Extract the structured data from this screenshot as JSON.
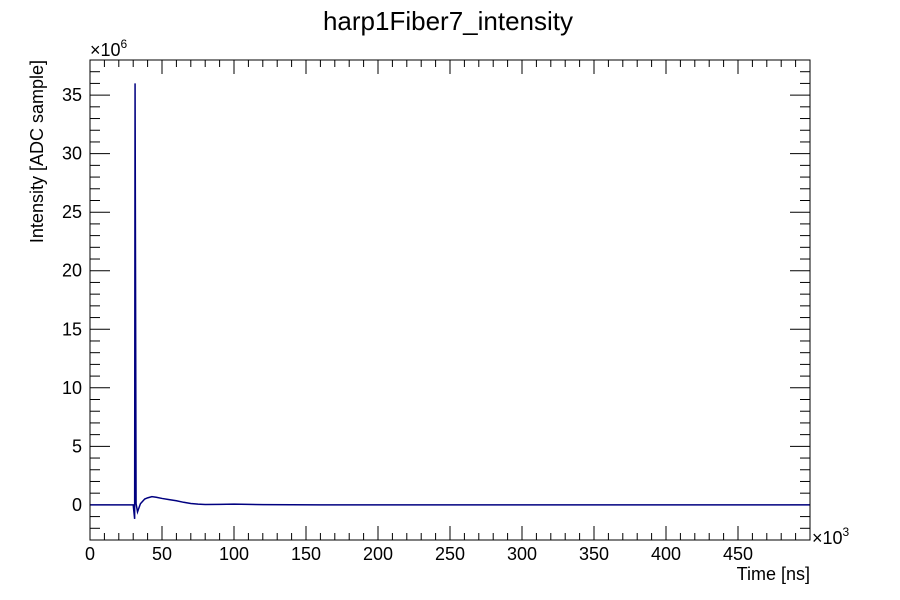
{
  "chart_data": {
    "type": "line",
    "title": "harp1Fiber7_intensity",
    "xlabel": "Time [ns]",
    "ylabel": "Intensity [ADC sample]",
    "x_multiplier_base": "×10",
    "x_multiplier_exp": "3",
    "y_multiplier_base": "×10",
    "y_multiplier_exp": "6",
    "xlim": [
      0,
      500
    ],
    "ylim": [
      -3,
      38
    ],
    "x_ticks": [
      0,
      50,
      100,
      150,
      200,
      250,
      300,
      350,
      400,
      450
    ],
    "x_tick_labels": [
      "0",
      "50",
      "100",
      "150",
      "200",
      "250",
      "300",
      "350",
      "400",
      "450"
    ],
    "y_ticks": [
      0,
      5,
      10,
      15,
      20,
      25,
      30,
      35
    ],
    "y_tick_labels": [
      "0",
      "5",
      "10",
      "15",
      "20",
      "25",
      "30",
      "35"
    ],
    "grid": false,
    "legend": "none",
    "series": [
      {
        "color": "#000080",
        "x": [
          0,
          30,
          31,
          31.3,
          32,
          33,
          35,
          38,
          40,
          43,
          46,
          50,
          55,
          60,
          65,
          70,
          75,
          80,
          90,
          100,
          110,
          120,
          140,
          160,
          200,
          300,
          400,
          500
        ],
        "y": [
          0,
          0,
          -1.2,
          36,
          0.1,
          -0.6,
          0.1,
          0.5,
          0.6,
          0.7,
          0.65,
          0.55,
          0.45,
          0.35,
          0.22,
          0.12,
          0.06,
          0.03,
          0.04,
          0.06,
          0.04,
          0.02,
          0.01,
          0.0,
          0.0,
          0.0,
          0.0,
          0.0
        ]
      }
    ]
  }
}
